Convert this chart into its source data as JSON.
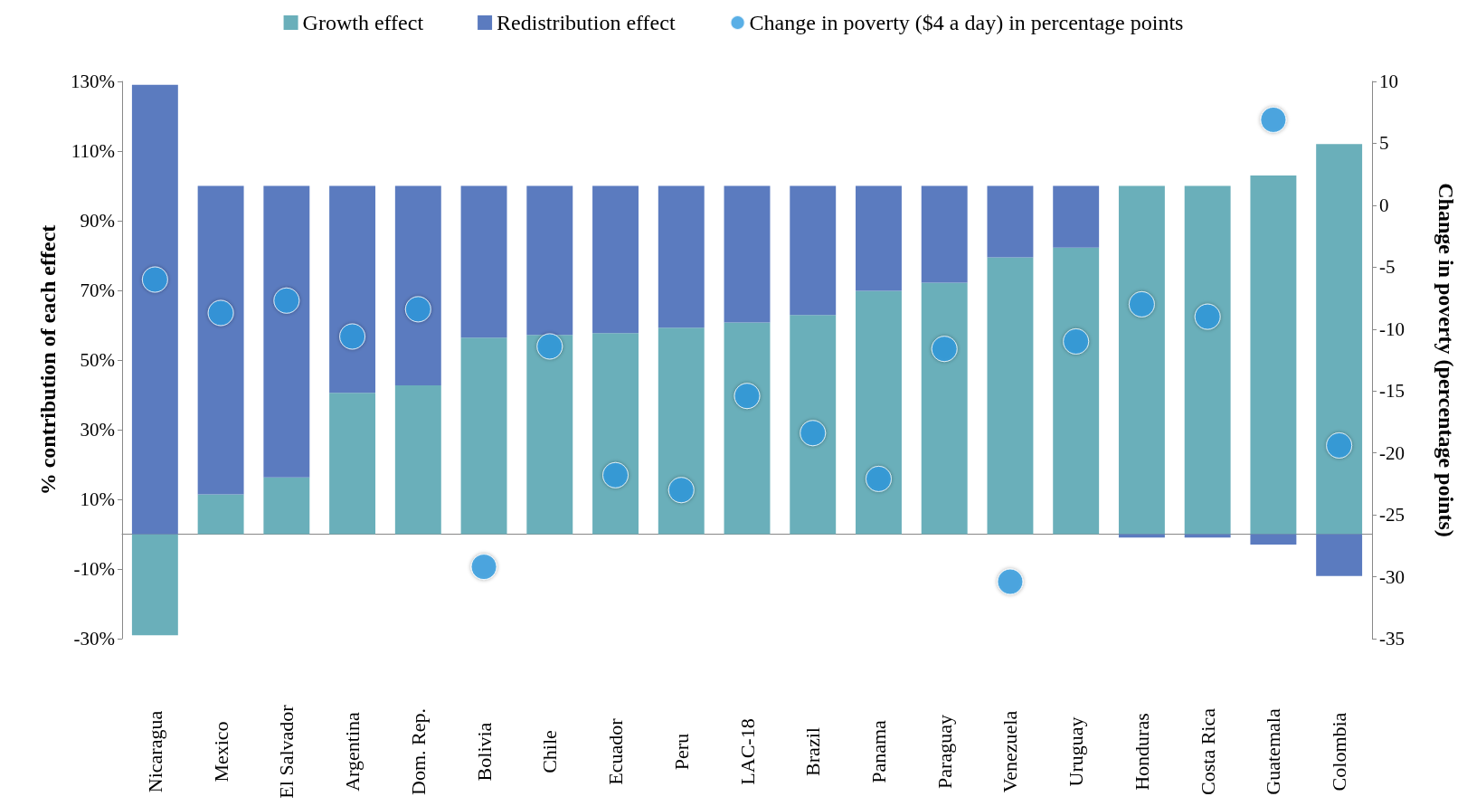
{
  "chart_data": {
    "type": "bar",
    "stacked": true,
    "ylabel": "% contribution of each effect",
    "y2label": "Change in poverty (percentage points)",
    "categories": [
      "Nicaragua",
      "Mexico",
      "El Salvador",
      "Argentina",
      "Dom. Rep.",
      "Bolivia",
      "Chile",
      "Ecuador",
      "Peru",
      "LAC-18",
      "Brazil",
      "Panama",
      "Paraguay",
      "Venezuela",
      "Uruguay",
      "Honduras",
      "Costa Rica",
      "Guatemala",
      "Colombia"
    ],
    "series": [
      {
        "name": "Growth effect",
        "color": "#6aafba",
        "values": [
          -29,
          11.4,
          16.3,
          40.6,
          42.7,
          56.4,
          57.2,
          57.7,
          59.3,
          60.8,
          62.9,
          69.9,
          72.2,
          79.5,
          82.3,
          100,
          100,
          103,
          112
        ]
      },
      {
        "name": "Redistribution effect",
        "color": "#5b7bbf",
        "values": [
          129,
          88.6,
          83.7,
          59.4,
          57.3,
          43.6,
          42.8,
          42.3,
          40.7,
          39.2,
          37.1,
          30.1,
          27.8,
          20.5,
          17.7,
          -1,
          -1,
          -3,
          -12
        ]
      },
      {
        "name": "Change in poverty ($4 a day) in percentage points",
        "type": "scatter",
        "axis": "y2",
        "color": "#2f9be0",
        "marker": "circle",
        "values": [
          -6.0,
          -8.7,
          -7.7,
          -10.6,
          -8.4,
          -29.2,
          -11.4,
          -21.8,
          -23.0,
          -15.4,
          -18.4,
          -22.1,
          -11.6,
          -30.4,
          -11.0,
          -8.0,
          -9.0,
          6.9,
          -19.4
        ]
      }
    ],
    "ylim": [
      -30,
      130
    ],
    "yticks": [
      {
        "value": -30,
        "label": "-30%"
      },
      {
        "value": -10,
        "label": "-10%"
      },
      {
        "value": 10,
        "label": "10%"
      },
      {
        "value": 30,
        "label": "30%"
      },
      {
        "value": 50,
        "label": "50%"
      },
      {
        "value": 70,
        "label": "70%"
      },
      {
        "value": 90,
        "label": "90%"
      },
      {
        "value": 110,
        "label": "110%"
      },
      {
        "value": 130,
        "label": "130%"
      }
    ],
    "y2lim": [
      -35,
      10
    ],
    "y2ticks": [
      -35,
      -30,
      -25,
      -20,
      -15,
      -10,
      -5,
      0,
      5,
      10
    ],
    "grid": false,
    "legend": "top"
  }
}
